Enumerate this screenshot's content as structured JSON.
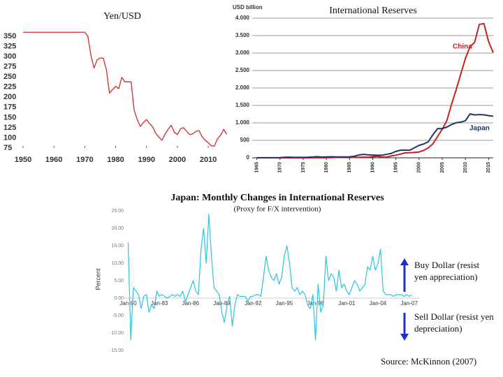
{
  "chart_data": [
    {
      "type": "line",
      "title": "Yen/USD",
      "x": [
        1950,
        1951,
        1952,
        1953,
        1954,
        1955,
        1956,
        1957,
        1958,
        1959,
        1960,
        1961,
        1962,
        1963,
        1964,
        1965,
        1966,
        1967,
        1968,
        1969,
        1970,
        1971,
        1972,
        1973,
        1974,
        1975,
        1976,
        1977,
        1978,
        1979,
        1980,
        1981,
        1982,
        1983,
        1984,
        1985,
        1986,
        1987,
        1988,
        1989,
        1990,
        1991,
        1992,
        1993,
        1994,
        1995,
        1996,
        1997,
        1998,
        1999,
        2000,
        2001,
        2002,
        2003,
        2004,
        2005,
        2006,
        2007,
        2008,
        2009,
        2010,
        2011,
        2012,
        2013,
        2014,
        2015,
        2016
      ],
      "values": [
        360,
        360,
        360,
        360,
        360,
        360,
        360,
        360,
        360,
        360,
        360,
        360,
        360,
        360,
        360,
        360,
        360,
        360,
        360,
        360,
        360,
        350,
        303,
        272,
        292,
        297,
        296,
        268,
        210,
        219,
        227,
        221,
        249,
        238,
        238,
        238,
        168,
        145,
        128,
        138,
        145,
        135,
        127,
        111,
        102,
        94,
        109,
        121,
        131,
        114,
        108,
        122,
        125,
        116,
        108,
        110,
        116,
        118,
        103,
        94,
        88,
        80,
        80,
        98,
        106,
        121,
        109
      ],
      "color": "#d22b2b",
      "xlim": [
        1950,
        2017
      ],
      "xticks": [
        1950,
        1960,
        1970,
        1980,
        1990,
        2000,
        2010
      ],
      "ylim": [
        70,
        370
      ],
      "yticks": [
        350,
        325,
        300,
        275,
        250,
        225,
        200,
        175,
        150,
        125,
        100,
        75
      ]
    },
    {
      "type": "line",
      "title": "International Reserves",
      "y_label": "USD billion",
      "x": [
        1965,
        1966,
        1967,
        1968,
        1969,
        1970,
        1971,
        1972,
        1973,
        1974,
        1975,
        1976,
        1977,
        1978,
        1979,
        1980,
        1981,
        1982,
        1983,
        1984,
        1985,
        1986,
        1987,
        1988,
        1989,
        1990,
        1991,
        1992,
        1993,
        1994,
        1995,
        1996,
        1997,
        1998,
        1999,
        2000,
        2001,
        2002,
        2003,
        2004,
        2005,
        2006,
        2007,
        2008,
        2009,
        2010,
        2011,
        2012,
        2013,
        2014,
        2015,
        2016
      ],
      "series": [
        {
          "name": "China",
          "color": "#c8201e",
          "values": [
            1,
            1,
            1,
            1,
            1,
            1,
            1,
            1,
            1,
            1,
            1,
            1,
            2,
            2,
            2,
            3,
            5,
            11,
            15,
            17,
            12,
            11,
            15,
            18,
            17,
            29,
            43,
            19,
            21,
            52,
            74,
            105,
            140,
            145,
            155,
            166,
            212,
            286,
            403,
            610,
            819,
            1066,
            1528,
            1946,
            2399,
            2847,
            3181,
            3312,
            3821,
            3843,
            3330,
            3011
          ]
        },
        {
          "name": "Japan",
          "color": "#1f3566",
          "values": [
            2,
            2,
            2,
            3,
            3,
            4,
            15,
            18,
            12,
            13,
            13,
            16,
            23,
            33,
            20,
            25,
            29,
            24,
            24,
            26,
            27,
            42,
            81,
            97,
            84,
            78,
            72,
            72,
            99,
            125,
            183,
            217,
            220,
            215,
            287,
            355,
            395,
            460,
            663,
            834,
            834,
            880,
            953,
            1003,
            1022,
            1061,
            1258,
            1227,
            1237,
            1231,
            1207,
            1190
          ]
        }
      ],
      "xlim": [
        1964,
        2016
      ],
      "xticks": [
        1965,
        1970,
        1975,
        1980,
        1985,
        1990,
        1995,
        2000,
        2005,
        2010,
        2015
      ],
      "ylim": [
        0,
        4000
      ],
      "yticks": [
        0,
        500,
        {
          "value": 1000,
          "label": "1.000"
        },
        {
          "value": 1500,
          "label": "1.500"
        },
        {
          "value": 2000,
          "label": "2.000"
        },
        {
          "value": 2500,
          "label": "2.500"
        },
        {
          "value": 3000,
          "label": "3.000"
        },
        {
          "value": 3500,
          "label": "3.500"
        },
        {
          "value": 4000,
          "label": "4.000"
        }
      ],
      "grid": true
    },
    {
      "type": "line",
      "title": "Japan: Monthly Changes in  International Reserves",
      "subtitle": "(Proxy for F/X intervention)",
      "y_label": "Percent",
      "x": [
        1980,
        1980.25,
        1980.5,
        1980.75,
        1981,
        1981.25,
        1981.5,
        1981.75,
        1982,
        1982.25,
        1982.5,
        1982.75,
        1983,
        1983.25,
        1983.5,
        1983.75,
        1984,
        1984.25,
        1984.5,
        1984.75,
        1985,
        1985.25,
        1985.5,
        1985.75,
        1986,
        1986.25,
        1986.5,
        1986.75,
        1987,
        1987.25,
        1987.5,
        1987.75,
        1988,
        1988.25,
        1988.5,
        1988.75,
        1989,
        1989.25,
        1989.5,
        1989.75,
        1990,
        1990.25,
        1990.5,
        1990.75,
        1991,
        1991.25,
        1991.5,
        1991.75,
        1992,
        1992.25,
        1992.5,
        1992.75,
        1993,
        1993.25,
        1993.5,
        1993.75,
        1994,
        1994.25,
        1994.5,
        1994.75,
        1995,
        1995.25,
        1995.5,
        1995.75,
        1996,
        1996.25,
        1996.5,
        1996.75,
        1997,
        1997.25,
        1997.5,
        1997.75,
        1998,
        1998.25,
        1998.5,
        1998.75,
        1999,
        1999.25,
        1999.5,
        1999.75,
        2000,
        2000.25,
        2000.5,
        2000.75,
        2001,
        2001.25,
        2001.5,
        2001.75,
        2002,
        2002.25,
        2002.5,
        2002.75,
        2003,
        2003.25,
        2003.5,
        2003.75,
        2004,
        2004.25,
        2004.5,
        2004.75,
        2005,
        2005.25,
        2005.5,
        2005.75,
        2006,
        2006.25,
        2006.5,
        2006.75,
        2007,
        2007.25
      ],
      "values": [
        16,
        -12,
        3,
        2,
        1,
        -3,
        0.5,
        1,
        -4,
        -2,
        -3,
        2,
        0.5,
        1,
        0.5,
        0,
        0.5,
        1,
        0.5,
        1,
        0.5,
        2,
        -1,
        1,
        3,
        5,
        2,
        1,
        14,
        20,
        10,
        24,
        12,
        3,
        2,
        1,
        -4,
        -7,
        -2,
        0.5,
        -8,
        -2,
        1,
        0.5,
        0.5,
        0.5,
        -1,
        0.5,
        0.5,
        1,
        1,
        0.5,
        6,
        12,
        8,
        6,
        5,
        7,
        4,
        6,
        12,
        15,
        10,
        3,
        2,
        3,
        1,
        2,
        1,
        -2,
        -3,
        1,
        -12,
        4,
        -4,
        -2,
        12,
        5,
        7,
        6,
        2,
        8,
        3,
        4,
        2,
        1,
        3,
        5,
        4,
        2,
        3,
        4,
        9,
        8,
        12,
        8,
        10,
        14,
        2,
        1,
        1,
        1,
        0.5,
        1,
        1,
        1,
        0.5,
        1,
        0.5,
        1
      ],
      "color": "#2bc4e0",
      "xlim": [
        1979.5,
        2008
      ],
      "xticks": [
        {
          "value": 1980,
          "label": "Jan-80"
        },
        {
          "value": 1983,
          "label": "Jan-83"
        },
        {
          "value": 1986,
          "label": "Jan-86"
        },
        {
          "value": 1989,
          "label": "Jan-89"
        },
        {
          "value": 1992,
          "label": "Jan-92"
        },
        {
          "value": 1995,
          "label": "Jan-95"
        },
        {
          "value": 1998,
          "label": "Jan-98"
        },
        {
          "value": 2001,
          "label": "Jan-01"
        },
        {
          "value": 2004,
          "label": "Jan-04"
        },
        {
          "value": 2007,
          "label": "Jan-07"
        }
      ],
      "ylim": [
        -15,
        25
      ],
      "yticks": [
        {
          "value": 25,
          "label": "25.00"
        },
        {
          "value": 20,
          "label": "20.00"
        },
        {
          "value": 15,
          "label": "15.00"
        },
        {
          "value": 10,
          "label": "10.00"
        },
        {
          "value": 5,
          "label": "5.00"
        },
        {
          "value": 0,
          "label": "0.00"
        },
        {
          "value": -5,
          "label": "-5.00"
        },
        {
          "value": -10,
          "label": "-10.00"
        },
        {
          "value": -15,
          "label": "-15.00"
        }
      ],
      "annotations": [
        "Buy Dollar (resist yen appreciation)",
        "Sell Dollar (resist yen depreciation)",
        "Source: McKinnon (2007)"
      ]
    }
  ]
}
